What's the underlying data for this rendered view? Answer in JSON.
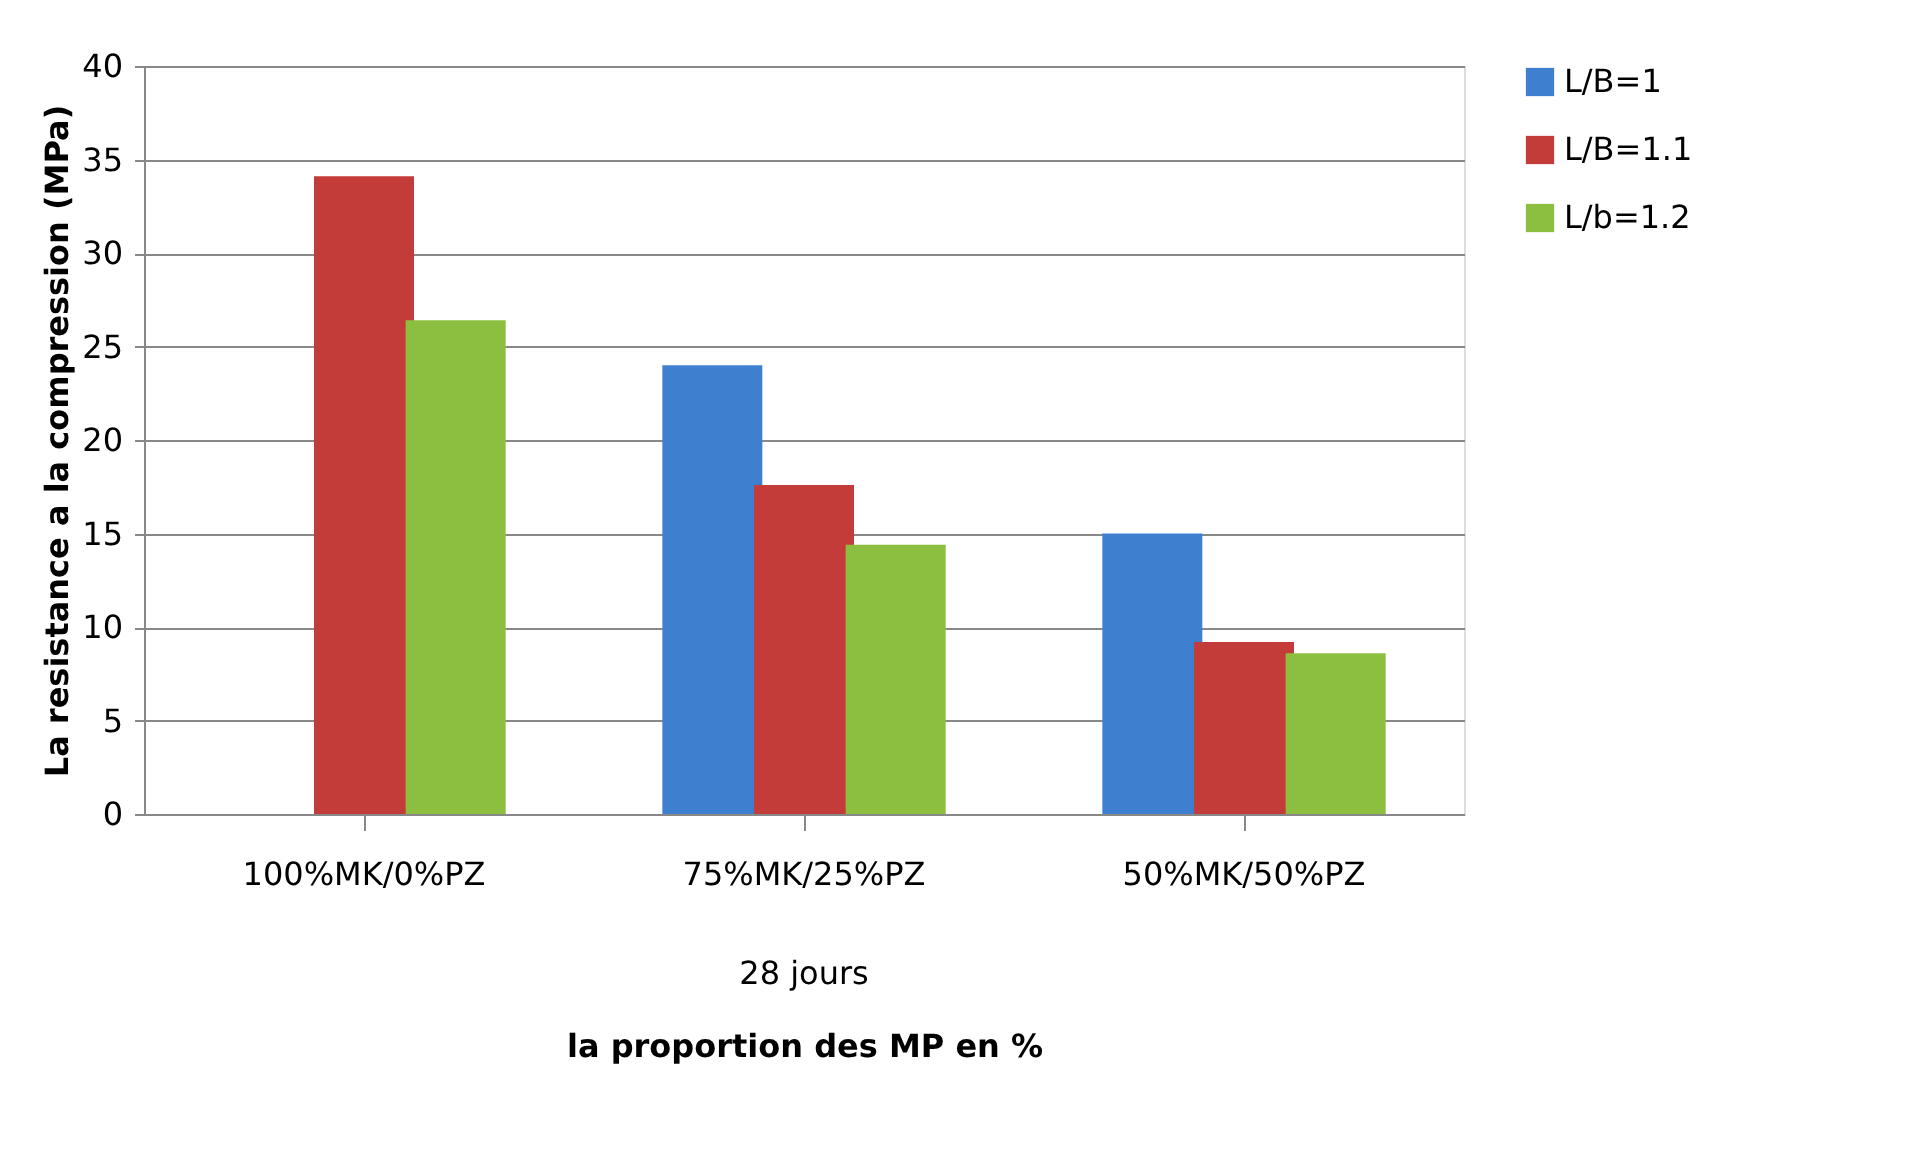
{
  "chart_data": {
    "type": "bar",
    "ylabel": "La resistance a la compression (MPa)",
    "xlabel": "la proportion des MP en %",
    "annotations": [
      "28 jours"
    ],
    "categories": [
      "100%MK/0%PZ",
      "75%MK/25%PZ",
      "50%MK/50%PZ"
    ],
    "series": [
      {
        "name": "L/B=1",
        "color": "#3f7fd0",
        "values": [
          null,
          24.0,
          15.0
        ]
      },
      {
        "name": "L/B=1.1",
        "color": "#c43c3a",
        "values": [
          34.1,
          17.6,
          9.2
        ]
      },
      {
        "name": "L/b=1.2",
        "color": "#8cbf3f",
        "values": [
          26.4,
          14.4,
          8.6
        ]
      }
    ],
    "ylim": [
      0,
      40
    ],
    "yticks": [
      0,
      5,
      10,
      15,
      20,
      25,
      30,
      35,
      40
    ],
    "grid": "y",
    "legend": "right"
  }
}
